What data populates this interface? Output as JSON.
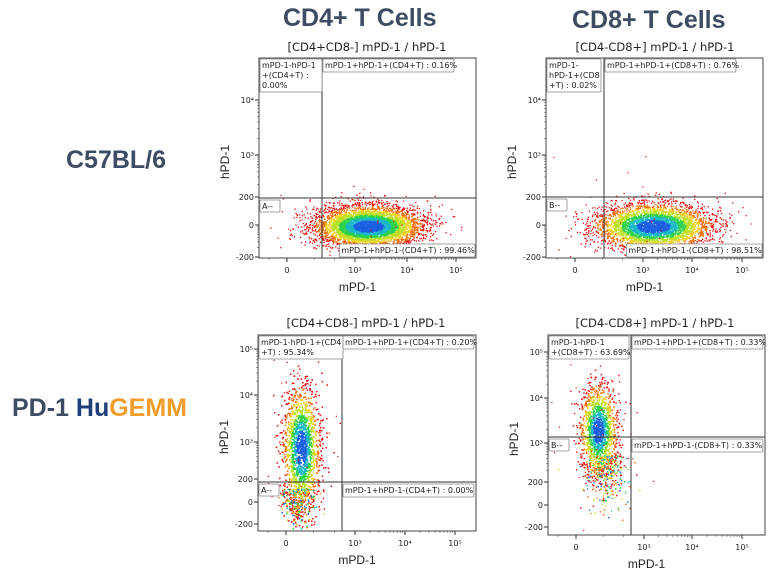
{
  "column_titles": [
    "CD4+ T Cells",
    "CD8+ T Cells"
  ],
  "row_labels": [
    {
      "parts": [
        {
          "text": "C57BL/6",
          "style": "default"
        }
      ]
    },
    {
      "parts": [
        {
          "text": "PD-1 ",
          "style": "default"
        },
        {
          "text": "Hu",
          "style": "hu"
        },
        {
          "text": "GEMM",
          "style": "gemm"
        }
      ]
    }
  ],
  "colors": {
    "title_text": "#3d4c63",
    "hu": "#1f3f7a",
    "gemm": "#f29c2b"
  },
  "chart_data": [
    {
      "type": "scatter",
      "subtype": "flow-cytometry-density",
      "title": "[CD4+CD8-] mPD-1 / hPD-1",
      "xlabel": "mPD-1",
      "ylabel": "hPD-1",
      "x_ticks": [
        "0",
        "10³",
        "10⁴",
        "10⁵"
      ],
      "y_ticks": [
        "10⁴",
        "10³",
        "200",
        "0",
        "-200"
      ],
      "gate_label": "A--",
      "quadrants": [
        {
          "name": "mPD-1-hPD-1+(CD4+T)",
          "label": "mPD-1-hPD-1\n+(CD4+T) :\n0.00%",
          "percent": 0.0,
          "position": "top-left"
        },
        {
          "name": "mPD-1+hPD-1+(CD4+T)",
          "label": "mPD-1+hPD-1+(CD4+T) : 0.16%",
          "percent": 0.16,
          "position": "top-right"
        },
        {
          "name": "mPD-1+hPD-1-(CD4+T)",
          "label": "mPD-1+hPD-1-(CD4+T) : 99.46%",
          "percent": 99.46,
          "position": "bottom-right"
        }
      ],
      "population": {
        "x_center": "~2x10³",
        "y_center": "~0",
        "description": "mPD-1 positive, hPD-1 negative"
      }
    },
    {
      "type": "scatter",
      "subtype": "flow-cytometry-density",
      "title": "[CD4-CD8+] mPD-1 / hPD-1",
      "xlabel": "mPD-1",
      "ylabel": "hPD-1",
      "x_ticks": [
        "0",
        "10³",
        "10⁴",
        "10⁵"
      ],
      "y_ticks": [
        "10⁴",
        "10³",
        "200",
        "0",
        "-200"
      ],
      "gate_label": "B--",
      "quadrants": [
        {
          "name": "mPD-1-hPD-1+(CD8+T)",
          "label": "mPD-1-\nhPD-1+(CD8\n+T) : 0.02%",
          "percent": 0.02,
          "position": "top-left"
        },
        {
          "name": "mPD-1+hPD-1+(CD8+T)",
          "label": "mPD-1+hPD-1+(CD8+T) : 0.76%",
          "percent": 0.76,
          "position": "top-right"
        },
        {
          "name": "mPD-1+hPD-1-(CD8+T)",
          "label": "mPD-1+hPD-1-(CD8+T) : 98.51%",
          "percent": 98.51,
          "position": "bottom-right"
        }
      ],
      "population": {
        "x_center": "~1.5x10³",
        "y_center": "~0",
        "description": "mPD-1 positive, hPD-1 negative"
      }
    },
    {
      "type": "scatter",
      "subtype": "flow-cytometry-density",
      "title": "[CD4+CD8-] mPD-1 / hPD-1",
      "xlabel": "mPD-1",
      "ylabel": "hPD-1",
      "x_ticks": [
        "0",
        "10³",
        "10⁴",
        "10⁵"
      ],
      "y_ticks": [
        "10⁵",
        "10⁴",
        "10³",
        "200",
        "0",
        "-200"
      ],
      "gate_label": "A--",
      "quadrants": [
        {
          "name": "mPD-1-hPD-1+(CD4+T)",
          "label": "mPD-1-hPD-1+(CD4\n+T) : 95.34%",
          "percent": 95.34,
          "position": "top-left"
        },
        {
          "name": "mPD-1+hPD-1+(CD4+T)",
          "label": "mPD-1+hPD-1+(CD4+T) : 0.20%",
          "percent": 0.2,
          "position": "top-right"
        },
        {
          "name": "mPD-1+hPD-1-(CD4+T)",
          "label": "mPD-1+hPD-1-(CD4+T) : 0.00%",
          "percent": 0.0,
          "position": "bottom-right"
        }
      ],
      "population": {
        "x_center": "~100",
        "y_center": "~10³",
        "description": "mPD-1 negative, hPD-1 positive"
      }
    },
    {
      "type": "scatter",
      "subtype": "flow-cytometry-density",
      "title": "[CD4-CD8+] mPD-1 / hPD-1",
      "xlabel": "mPD-1",
      "ylabel": "hPD-1",
      "x_ticks": [
        "0",
        "10³",
        "10⁴",
        "10⁵"
      ],
      "y_ticks": [
        "10⁵",
        "10⁴",
        "10³",
        "200",
        "0",
        "-200"
      ],
      "gate_label": "B--",
      "quadrants": [
        {
          "name": "mPD-1-hPD-1+(CD8+T)",
          "label": "mPD-1-hPD-1\n+(CD8+T) : 63.69%",
          "percent": 63.69,
          "position": "top-left"
        },
        {
          "name": "mPD-1+hPD-1+(CD8+T)",
          "label": "mPD-1+hPD-1+(CD8+T) : 0.33%",
          "percent": 0.33,
          "position": "top-right"
        },
        {
          "name": "mPD-1+hPD-1-(CD8+T)",
          "label": "mPD-1+hPD-1-(CD8+T) : 0.33%",
          "percent": 0.33,
          "position": "bottom-right"
        }
      ],
      "population": {
        "x_center": "~150",
        "y_center": "~10³",
        "description": "mPD-1 negative, hPD-1 positive"
      }
    }
  ]
}
